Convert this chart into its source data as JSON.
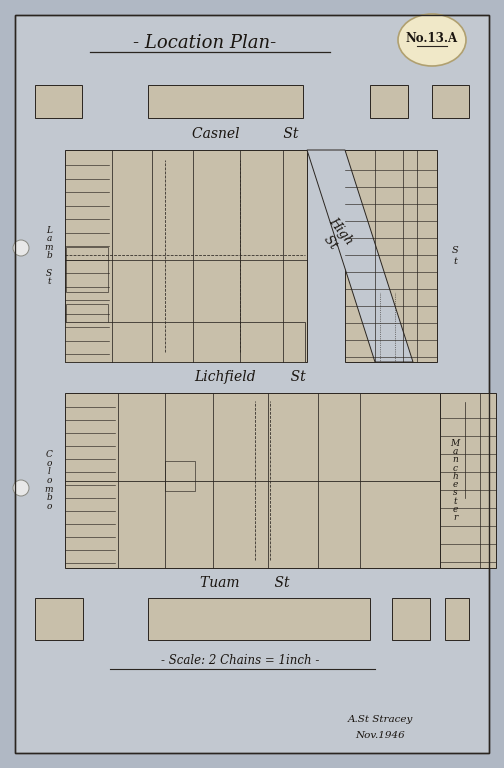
{
  "bg_color": "#b0b8c4",
  "paper_color": "#c2c8d0",
  "block_fill": "#c8bfaa",
  "outline_color": "#2a2520",
  "title": "- Location Plan-",
  "badge_text": "No.13.A",
  "badge_color": "#f0e8c8",
  "scale_text": "- Scale: 2 Chains = 1inch -",
  "signature_line1": "A.St Stracey",
  "signature_line2": "Nov.1946",
  "street_casnel": "Casnel          St",
  "street_lichfield": "Lichfield        St",
  "street_tuam": "Tuam        St",
  "street_high": "High\n St",
  "lamb_st": "L\na\nm\nb\n\nS\nt",
  "colombo_st": "C\no\nl\no\nm\nb\no",
  "manchester_st": "M\na\nn\nc\nh\ne\ns\nt\ne\nr"
}
